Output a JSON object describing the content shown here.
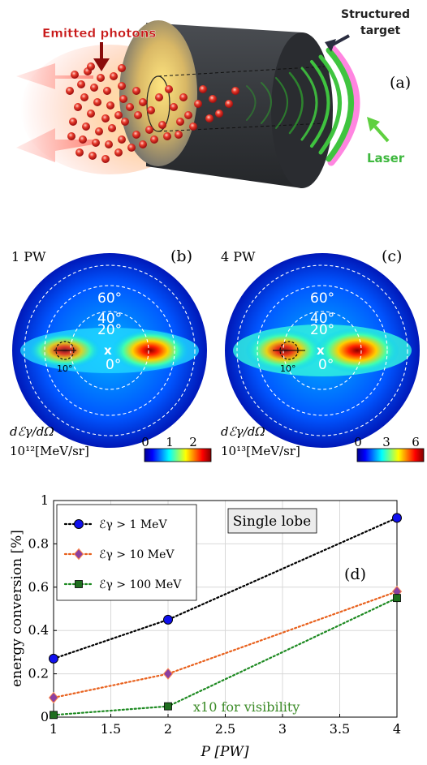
{
  "panel_a": {
    "label": "(a)",
    "emitted_photons": "Emitted photons",
    "structured_target_line1": "Structured",
    "structured_target_line2": "target",
    "laser": "Laser"
  },
  "panel_b": {
    "label": "(b)",
    "power": "1 PW",
    "angle_labels": [
      "60°",
      "40°",
      "20°",
      "0°"
    ],
    "center_mark": "x",
    "lobe_size": "10°",
    "cbar_title_line1": "dℰγ/dΩ",
    "cbar_title_line2": "10¹²[MeV/sr]",
    "cbar_ticks": [
      "0",
      "1",
      "2"
    ]
  },
  "panel_c": {
    "label": "(c)",
    "power": "4 PW",
    "angle_labels": [
      "60°",
      "40°",
      "20°",
      "0°"
    ],
    "center_mark": "x",
    "lobe_size": "10°",
    "cbar_title_line1": "dℰγ/dΩ",
    "cbar_title_line2": "10¹³[MeV/sr]",
    "cbar_ticks": [
      "0",
      "3",
      "6"
    ]
  },
  "panel_d": {
    "label": "(d)",
    "box_title": "Single lobe",
    "annotation": "x10 for visibility"
  },
  "colors": {
    "black_series": "#000000",
    "orange_series": "#e8601c",
    "green_series": "#1e8a22",
    "marker_blue": "#1010ee",
    "marker_purple": "#8b3fa0",
    "marker_green": "#1f6e1f",
    "laser_green": "#3fc43f",
    "photon_red": "#e83a2a",
    "cylinder": "#3a3d42"
  },
  "chart_data": {
    "type": "line",
    "xlabel": "P [PW]",
    "ylabel": "energy conversion [%]",
    "xlim": [
      1,
      4
    ],
    "ylim": [
      0,
      1
    ],
    "xticks": [
      "1",
      "1.5",
      "2",
      "2.5",
      "3",
      "3.5",
      "4"
    ],
    "yticks": [
      "0",
      "0.2",
      "0.4",
      "0.6",
      "0.8",
      "1"
    ],
    "grid": true,
    "legend_position": "top-left",
    "x": [
      1,
      2,
      4
    ],
    "series": [
      {
        "name": "ℰγ > 1 MeV",
        "values": [
          0.27,
          0.45,
          0.92
        ],
        "line_color": "#000000",
        "marker": "circle",
        "marker_color": "#1010ee"
      },
      {
        "name": "ℰγ > 10 MeV",
        "values": [
          0.09,
          0.2,
          0.58
        ],
        "line_color": "#e8601c",
        "marker": "diamond",
        "marker_color": "#8b3fa0"
      },
      {
        "name": "ℰγ > 100 MeV",
        "values": [
          0.01,
          0.05,
          0.55
        ],
        "line_color": "#1e8a22",
        "marker": "square",
        "marker_color": "#1f6e1f"
      }
    ]
  }
}
